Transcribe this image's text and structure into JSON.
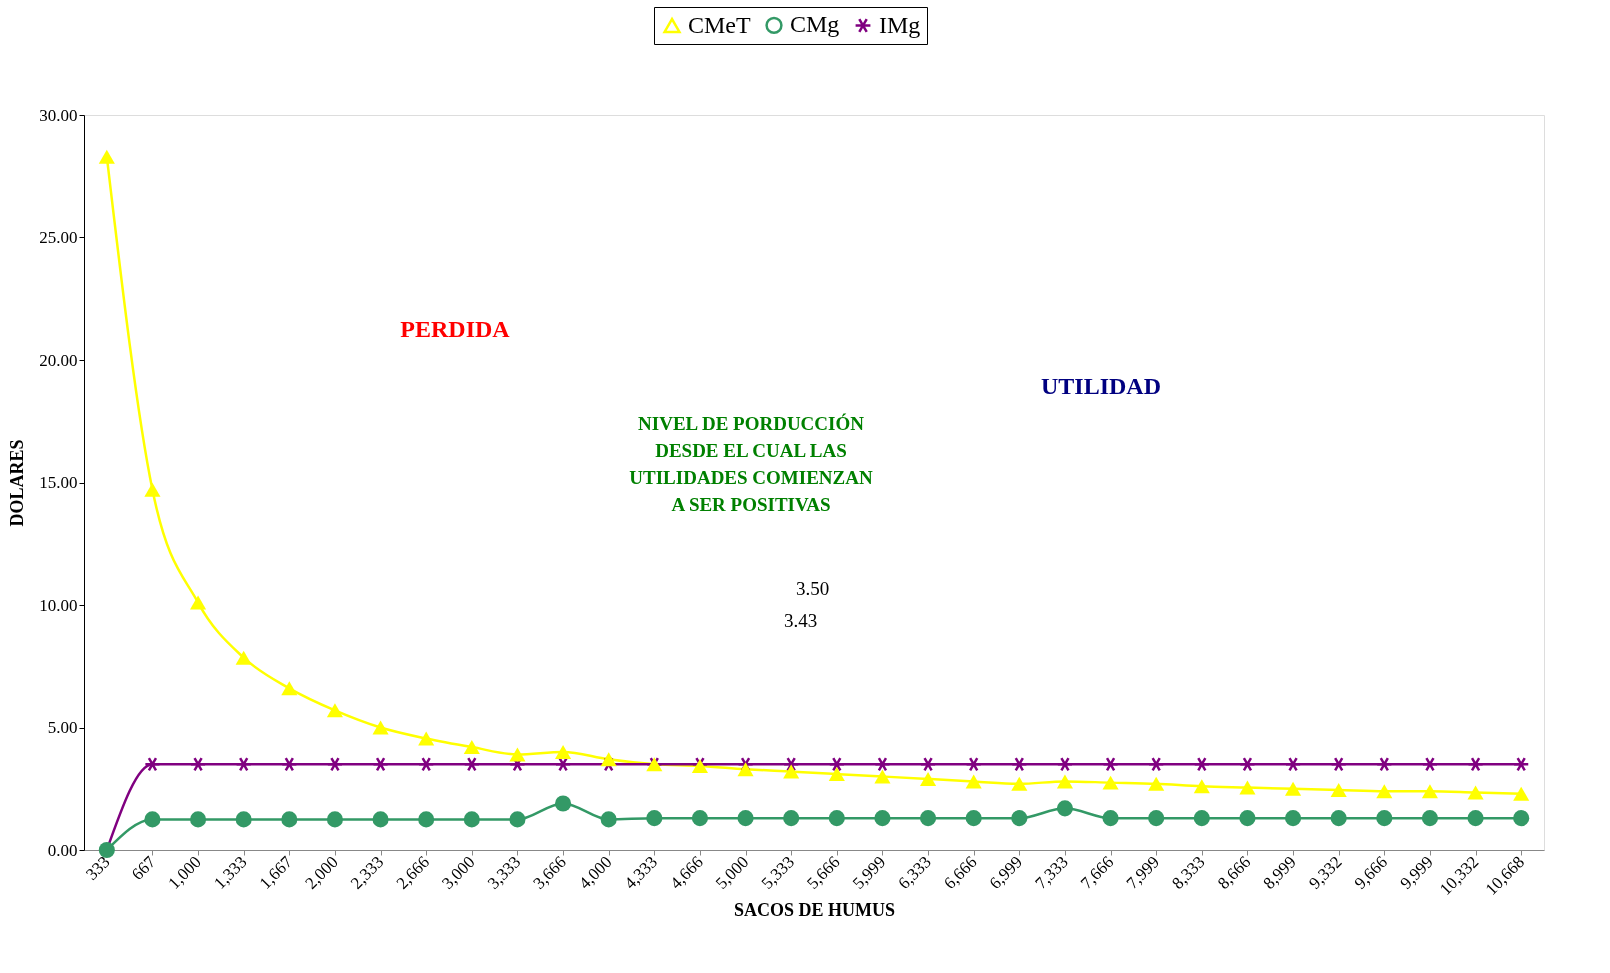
{
  "chart_data": {
    "type": "line",
    "xlabel": "SACOS DE HUMUS",
    "ylabel": "DOLARES",
    "categories": [
      "333",
      "667",
      "1,000",
      "1,333",
      "1,667",
      "2,000",
      "2,333",
      "2,666",
      "3,000",
      "3,333",
      "3,666",
      "4,000",
      "4,333",
      "4,666",
      "5,000",
      "5,333",
      "5,666",
      "5,999",
      "6,333",
      "6,666",
      "6,999",
      "7,333",
      "7,666",
      "7,999",
      "8,333",
      "8,666",
      "8,999",
      "9,332",
      "9,666",
      "9,999",
      "10,332",
      "10,668"
    ],
    "series": [
      {
        "name": "CMeT",
        "color": "#ffff00",
        "marker": "triangle",
        "values": [
          28.3,
          14.7,
          10.1,
          7.85,
          6.6,
          5.7,
          5.0,
          4.55,
          4.2,
          3.9,
          4.0,
          3.7,
          3.5,
          3.43,
          3.3,
          3.2,
          3.1,
          3.0,
          2.9,
          2.8,
          2.7,
          2.8,
          2.75,
          2.7,
          2.6,
          2.55,
          2.5,
          2.45,
          2.4,
          2.4,
          2.35,
          2.3
        ]
      },
      {
        "name": "CMg",
        "color": "#339966",
        "marker": "circle",
        "values": [
          0,
          1.25,
          1.25,
          1.25,
          1.25,
          1.25,
          1.25,
          1.25,
          1.25,
          1.25,
          1.9,
          1.25,
          1.3,
          1.3,
          1.3,
          1.3,
          1.3,
          1.3,
          1.3,
          1.3,
          1.3,
          1.7,
          1.3,
          1.3,
          1.3,
          1.3,
          1.3,
          1.3,
          1.3,
          1.3,
          1.3,
          1.3
        ]
      },
      {
        "name": "IMg",
        "color": "#800080",
        "marker": "cross",
        "values": [
          0,
          3.5,
          3.5,
          3.5,
          3.5,
          3.5,
          3.5,
          3.5,
          3.5,
          3.5,
          3.5,
          3.5,
          3.5,
          3.5,
          3.5,
          3.5,
          3.5,
          3.5,
          3.5,
          3.5,
          3.5,
          3.5,
          3.5,
          3.5,
          3.5,
          3.5,
          3.5,
          3.5,
          3.5,
          3.5,
          3.5,
          3.5
        ]
      }
    ],
    "ylim": [
      0,
      30
    ],
    "yticks": [
      {
        "value": 0,
        "label": "0.00"
      },
      {
        "value": 5,
        "label": "5.00"
      },
      {
        "value": 10,
        "label": "10.00"
      },
      {
        "value": 15,
        "label": "15.00"
      },
      {
        "value": 20,
        "label": "20.00"
      },
      {
        "value": 25,
        "label": "25.00"
      },
      {
        "value": 30,
        "label": "30.00"
      }
    ],
    "grid": false,
    "legend": "top",
    "annotations": [
      "PERDIDA",
      "UTILIDAD",
      "NIVEL DE PORDUCCIÓN DESDE EL CUAL LAS UTILIDADES COMIENZAN A SER POSITIVAS",
      "3.50",
      "3.43"
    ]
  }
}
